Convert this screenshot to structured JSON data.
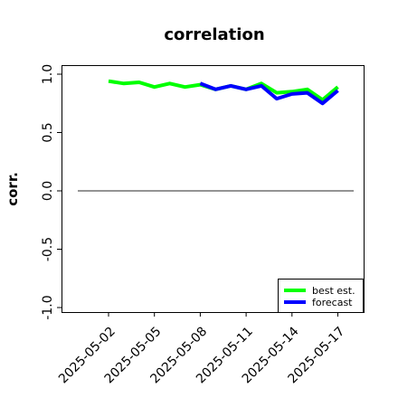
{
  "chart_data": {
    "type": "line",
    "title": "correlation",
    "xlabel": "",
    "ylabel": "corr.",
    "ylim": [
      -1.0,
      1.0
    ],
    "xlim": [
      "2025-04-31",
      "2025-05-19"
    ],
    "yticks": [
      1.0,
      0.5,
      0.0,
      -0.5,
      -1.0
    ],
    "ytick_labels": [
      "1.0",
      "0.5",
      "0.0",
      "-0.5",
      "-1.0"
    ],
    "xticks": [
      "2025-05-02",
      "2025-05-05",
      "2025-05-08",
      "2025-05-11",
      "2025-05-14",
      "2025-05-17"
    ],
    "xtick_labels": [
      "2025-05-02",
      "2025-05-05",
      "2025-05-08",
      "2025-05-11",
      "2025-05-14",
      "2025-05-17"
    ],
    "highlighted_xtick": "2025-05-08",
    "highlight_color": "#228b22",
    "reference_line": 0.0,
    "legend_position": "lower right",
    "series": [
      {
        "name": "best est.",
        "color": "#00ff00",
        "x": [
          "2025-05-02",
          "2025-05-03",
          "2025-05-04",
          "2025-05-05",
          "2025-05-06",
          "2025-05-07",
          "2025-05-08",
          "2025-05-09",
          "2025-05-10",
          "2025-05-11",
          "2025-05-12",
          "2025-05-13",
          "2025-05-14",
          "2025-05-15",
          "2025-05-16",
          "2025-05-17"
        ],
        "y": [
          0.94,
          0.92,
          0.93,
          0.89,
          0.92,
          0.89,
          0.91,
          0.87,
          0.9,
          0.87,
          0.92,
          0.84,
          0.85,
          0.87,
          0.78,
          0.89
        ]
      },
      {
        "name": "forecast",
        "color": "#0000ff",
        "x": [
          "2025-05-08",
          "2025-05-09",
          "2025-05-10",
          "2025-05-11",
          "2025-05-12",
          "2025-05-13",
          "2025-05-14",
          "2025-05-15",
          "2025-05-16",
          "2025-05-17"
        ],
        "y": [
          0.92,
          0.87,
          0.9,
          0.87,
          0.9,
          0.79,
          0.83,
          0.84,
          0.75,
          0.86
        ]
      }
    ]
  }
}
